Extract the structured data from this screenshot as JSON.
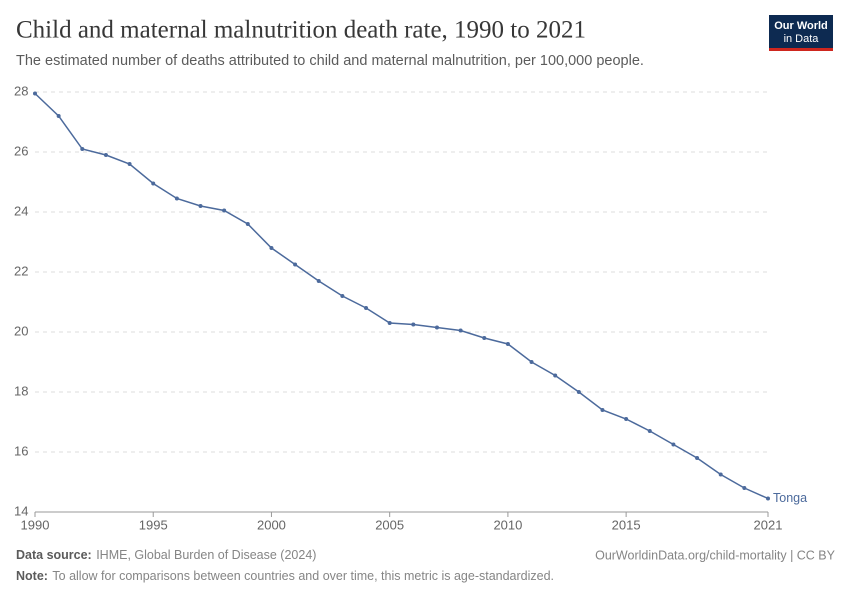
{
  "chart_data": {
    "type": "line",
    "title": "Child and maternal malnutrition death rate, 1990 to 2021",
    "subtitle": "The estimated number of deaths attributed to child and maternal malnutrition, per 100,000 people.",
    "logo": [
      "Our World",
      "in Data"
    ],
    "source_label": "Data source:",
    "source": "IHME, Global Burden of Disease (2024)",
    "url": "OurWorldinData.org/child-mortality | CC BY",
    "note_label": "Note:",
    "note": "To allow for comparisons between countries and over time, this metric is age-standardized.",
    "x": [
      1990,
      1991,
      1992,
      1993,
      1994,
      1995,
      1996,
      1997,
      1998,
      1999,
      2000,
      2001,
      2002,
      2003,
      2004,
      2005,
      2006,
      2007,
      2008,
      2009,
      2010,
      2011,
      2012,
      2013,
      2014,
      2015,
      2016,
      2017,
      2018,
      2019,
      2020,
      2021
    ],
    "series": [
      {
        "name": "Tonga",
        "color": "#4c6a9c",
        "values": [
          27.95,
          27.2,
          26.1,
          25.9,
          25.6,
          24.95,
          24.45,
          24.2,
          24.05,
          23.6,
          22.8,
          22.25,
          21.7,
          21.2,
          20.8,
          20.3,
          20.25,
          20.15,
          20.05,
          19.8,
          19.6,
          19.0,
          18.55,
          18.0,
          17.4,
          17.1,
          16.7,
          16.25,
          15.8,
          15.25,
          14.8,
          14.45
        ]
      }
    ],
    "xlim": [
      1990,
      2021
    ],
    "xticks": [
      1990,
      1995,
      2000,
      2005,
      2010,
      2015,
      2021
    ],
    "ylim": [
      14,
      28
    ],
    "yticks": [
      14,
      16,
      18,
      20,
      22,
      24,
      26,
      28
    ],
    "grid": true
  }
}
